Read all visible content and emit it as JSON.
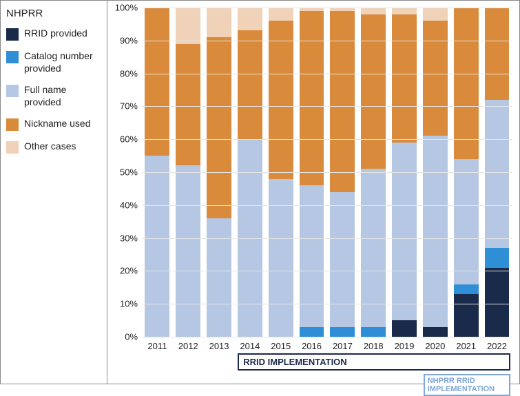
{
  "legend": {
    "title": "NHPRR",
    "items": [
      {
        "label": "RRID provided",
        "color": "#1a2a4a"
      },
      {
        "label": "Catalog number provided",
        "color": "#2f8fd6"
      },
      {
        "label": "Full name provided",
        "color": "#b6c7e4"
      },
      {
        "label": "Nickname used",
        "color": "#d98a3a"
      },
      {
        "label": "Other cases",
        "color": "#f0d2b8"
      }
    ]
  },
  "chart": {
    "type": "stacked-bar",
    "ylim": [
      0,
      100
    ],
    "ytick_step": 10,
    "y_suffix": "%",
    "grid_color": "#e5e5e5",
    "background_color": "#ffffff",
    "categories": [
      "2011",
      "2012",
      "2013",
      "2014",
      "2015",
      "2016",
      "2017",
      "2018",
      "2019",
      "2020",
      "2021",
      "2022"
    ],
    "series_order": [
      "rrid",
      "catalog",
      "fullname",
      "nickname",
      "other"
    ],
    "series_colors": {
      "rrid": "#1a2a4a",
      "catalog": "#2f8fd6",
      "fullname": "#b6c7e4",
      "nickname": "#d98a3a",
      "other": "#f0d2b8"
    },
    "data": [
      {
        "rrid": 0,
        "catalog": 0,
        "fullname": 55,
        "nickname": 45,
        "other": 0
      },
      {
        "rrid": 0,
        "catalog": 0,
        "fullname": 52,
        "nickname": 37,
        "other": 11
      },
      {
        "rrid": 0,
        "catalog": 0,
        "fullname": 36,
        "nickname": 55,
        "other": 9
      },
      {
        "rrid": 0,
        "catalog": 0,
        "fullname": 60,
        "nickname": 33,
        "other": 7
      },
      {
        "rrid": 0,
        "catalog": 0,
        "fullname": 48,
        "nickname": 48,
        "other": 4
      },
      {
        "rrid": 0,
        "catalog": 3,
        "fullname": 43,
        "nickname": 53,
        "other": 1
      },
      {
        "rrid": 0,
        "catalog": 3,
        "fullname": 41,
        "nickname": 55,
        "other": 1
      },
      {
        "rrid": 0,
        "catalog": 3,
        "fullname": 48,
        "nickname": 47,
        "other": 2
      },
      {
        "rrid": 5,
        "catalog": 0,
        "fullname": 54,
        "nickname": 39,
        "other": 2
      },
      {
        "rrid": 3,
        "catalog": 0,
        "fullname": 58,
        "nickname": 35,
        "other": 4
      },
      {
        "rrid": 13,
        "catalog": 3,
        "fullname": 38,
        "nickname": 46,
        "other": 0
      },
      {
        "rrid": 21,
        "catalog": 6,
        "fullname": 45,
        "nickname": 28,
        "other": 0
      }
    ],
    "annotations": [
      {
        "text": "RRID IMPLEMENTATION",
        "color": "#1a2a4a",
        "start_index": 3,
        "end_index": 11,
        "row": 0
      },
      {
        "text": "NHPRR RRID IMPLEMENTATION",
        "color": "#7ea6d8",
        "start_index": 9,
        "end_index": 11,
        "row": 1
      }
    ]
  }
}
